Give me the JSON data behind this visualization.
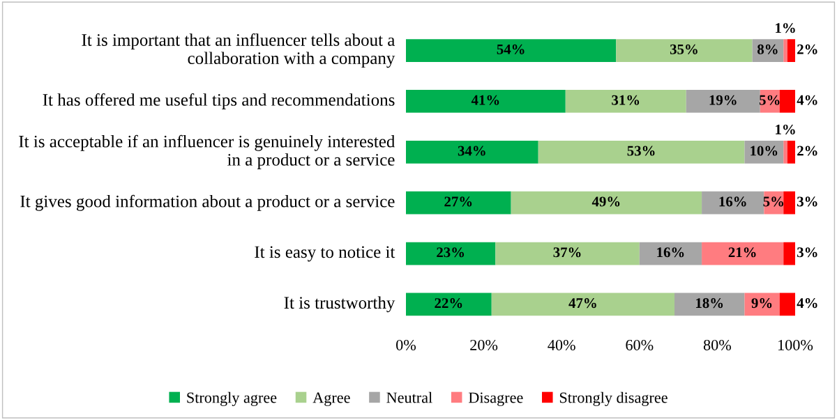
{
  "chart_data": {
    "type": "bar",
    "orientation": "horizontal",
    "stacked": true,
    "categories": [
      "It is important that an influencer tells about a collaboration with a company",
      "It has offered me useful tips and recommendations",
      "It is acceptable if an influencer is genuinely interested in a product or a service",
      "It gives good information about a product or a service",
      "It is easy to notice it",
      "It is trustworthy"
    ],
    "series": [
      {
        "name": "Strongly agree",
        "color": "#00b050",
        "values": [
          54,
          41,
          34,
          27,
          23,
          22
        ],
        "value_labels": [
          "54%",
          "41%",
          "34%",
          "27%",
          "23%",
          "22%"
        ]
      },
      {
        "name": "Agree",
        "color": "#a9d18e",
        "values": [
          35,
          31,
          53,
          49,
          37,
          47
        ],
        "value_labels": [
          "35%",
          "31%",
          "53%",
          "49%",
          "37%",
          "47%"
        ]
      },
      {
        "name": "Neutral",
        "color": "#a6a6a6",
        "values": [
          8,
          19,
          10,
          16,
          16,
          18
        ],
        "value_labels": [
          "8%",
          "19%",
          "10%",
          "16%",
          "16%",
          "18%"
        ]
      },
      {
        "name": "Disagree",
        "color": "#ff7c80",
        "values": [
          1,
          5,
          1,
          5,
          21,
          9
        ],
        "value_labels": [
          "1%",
          "5%",
          "1%",
          "5%",
          "21%",
          "9%"
        ]
      },
      {
        "name": "Strongly disagree",
        "color": "#ff0000",
        "values": [
          2,
          4,
          2,
          3,
          3,
          4
        ],
        "value_labels": [
          "2%",
          "4%",
          "2%",
          "3%",
          "3%",
          "4%"
        ]
      }
    ],
    "xlim": [
      0,
      100
    ],
    "xticks": [
      {
        "value": 0,
        "label": "0%"
      },
      {
        "value": 20,
        "label": "20%"
      },
      {
        "value": 40,
        "label": "40%"
      },
      {
        "value": 60,
        "label": "60%"
      },
      {
        "value": 80,
        "label": "80%"
      },
      {
        "value": 100,
        "label": "100%"
      }
    ],
    "grid": false,
    "legend": "bottom"
  }
}
